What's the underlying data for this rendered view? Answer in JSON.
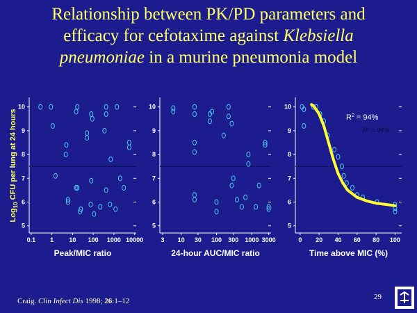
{
  "title": {
    "lines": [
      [
        {
          "text": "Relationship between PK/PD parameters and",
          "italic": false
        }
      ],
      [
        {
          "text": "efficacy for cefotaxime against ",
          "italic": false
        },
        {
          "text": "Klebsiella",
          "italic": true
        }
      ],
      [
        {
          "text": "pneumoniae",
          "italic": true
        },
        {
          "text": " in a murine pneumonia model",
          "italic": false
        }
      ]
    ]
  },
  "y_label": {
    "text": "Log",
    "sub": "10",
    "rest": " CFU per lung at 24 hours"
  },
  "citation": [
    {
      "text": "Craig. ",
      "style": "normal"
    },
    {
      "text": "Clin Infect Dis",
      "style": "italic"
    },
    {
      "text": " 1998; ",
      "style": "normal"
    },
    {
      "text": "26",
      "style": "bold"
    },
    {
      "text": ":1–12",
      "style": "normal"
    }
  ],
  "page_number": "29",
  "chart_data": [
    {
      "type": "scatter",
      "xlabel": "Peak/MIC ratio",
      "xscale": "log",
      "color": "#4fc8f0",
      "xlim": [
        0.08,
        12000
      ],
      "ylim": [
        4.7,
        10.4
      ],
      "xticks": [
        0.1,
        1,
        10,
        100,
        1000,
        10000
      ],
      "yticks": [
        5,
        6,
        7,
        8,
        9,
        10
      ],
      "reference_line": 7.5,
      "x": [
        0.28,
        0.9,
        1.1,
        1.5,
        5,
        4.7,
        6,
        6,
        15,
        17,
        17,
        15,
        25,
        23,
        50,
        50,
        80,
        90,
        80,
        75,
        110,
        220,
        350,
        420,
        420,
        420,
        650,
        700,
        1400,
        1200,
        2000,
        3000,
        5500,
        5500
      ],
      "values": [
        10,
        10,
        9.2,
        7.1,
        8.4,
        8.0,
        6.1,
        6.0,
        6.6,
        6.6,
        10,
        9.8,
        5.7,
        5.6,
        8.9,
        8.7,
        9.7,
        9.5,
        6.9,
        5.9,
        5.5,
        5.8,
        9.0,
        10,
        9.7,
        6.5,
        5.9,
        7.8,
        10,
        5.7,
        7.0,
        6.6,
        8.3,
        8.5
      ]
    },
    {
      "type": "scatter",
      "xlabel": "24-hour AUC/MIC ratio",
      "xscale": "log",
      "color": "#4fc8f0",
      "xlim": [
        2.5,
        3500
      ],
      "ylim": [
        4.7,
        10.4
      ],
      "xticks": [
        3,
        10,
        30,
        100,
        300,
        1000,
        3000
      ],
      "yticks": [
        5,
        6,
        7,
        8,
        9,
        10
      ],
      "reference_line": 7.5,
      "x": [
        6,
        6,
        24,
        24,
        24,
        24,
        24,
        24,
        65,
        75,
        65,
        100,
        100,
        160,
        220,
        220,
        270,
        270,
        300,
        380,
        520,
        660,
        800,
        800,
        1300,
        1600,
        2400,
        2400,
        3000,
        3000
      ],
      "values": [
        9.95,
        9.8,
        10,
        9.7,
        8.5,
        8.1,
        6.3,
        6.1,
        9.7,
        9.8,
        9.4,
        5.6,
        6.0,
        8.8,
        10,
        9.6,
        9.3,
        6.7,
        7.0,
        6.1,
        5.8,
        6.2,
        8.0,
        7.6,
        5.8,
        6.7,
        8.5,
        8.4,
        5.8,
        5.7
      ]
    },
    {
      "type": "scatter",
      "xlabel": "Time above MIC (%)",
      "xscale": "linear",
      "color": "#4fc8f0",
      "xlim": [
        -5,
        107
      ],
      "ylim": [
        4.7,
        10.4
      ],
      "xticks": [
        0,
        20,
        40,
        60,
        80,
        100
      ],
      "yticks": [
        5,
        6,
        7,
        8,
        9,
        10
      ],
      "reference_line": 7.5,
      "x": [
        2,
        4,
        4,
        14,
        17,
        21,
        25,
        29,
        36,
        40,
        44,
        46,
        49,
        55,
        60,
        66,
        81,
        100,
        100,
        100
      ],
      "values": [
        10,
        9.9,
        9.2,
        10,
        10,
        9.7,
        9.4,
        8.8,
        8.2,
        7.9,
        7.5,
        7.1,
        6.8,
        6.6,
        6.3,
        6.2,
        6.0,
        5.9,
        5.75,
        5.6
      ],
      "fit": {
        "color": "#ffff33",
        "x": [
          12,
          15,
          20,
          25,
          30,
          35,
          40,
          45,
          50,
          60,
          70,
          80,
          90,
          100
        ],
        "values": [
          10.1,
          10,
          9.7,
          9.2,
          8.5,
          7.8,
          7.2,
          6.8,
          6.5,
          6.2,
          6.05,
          5.95,
          5.9,
          5.85
        ]
      },
      "annotations": [
        {
          "text": "R",
          "sup": "2",
          "rest": " = 94%"
        },
        {
          "text": "R",
          "sup": "2",
          "rest": " = 94%"
        }
      ]
    }
  ]
}
